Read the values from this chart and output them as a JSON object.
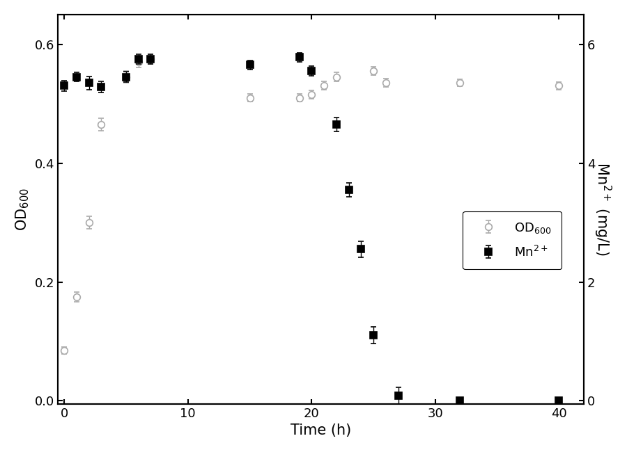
{
  "od600_x": [
    0,
    1,
    2,
    3,
    5,
    6,
    7,
    15,
    19,
    20,
    21,
    22,
    25,
    26,
    32,
    40
  ],
  "od600_y": [
    0.085,
    0.175,
    0.3,
    0.465,
    0.545,
    0.57,
    0.575,
    0.51,
    0.51,
    0.515,
    0.53,
    0.545,
    0.555,
    0.535,
    0.535,
    0.53
  ],
  "od600_yerr": [
    0.006,
    0.008,
    0.01,
    0.01,
    0.01,
    0.009,
    0.008,
    0.007,
    0.007,
    0.007,
    0.007,
    0.008,
    0.007,
    0.007,
    0.006,
    0.006
  ],
  "mn_x": [
    0,
    1,
    2,
    3,
    5,
    6,
    7,
    15,
    19,
    20,
    22,
    23,
    24,
    25,
    27,
    32,
    40
  ],
  "mn_y": [
    5.3,
    5.45,
    5.35,
    5.28,
    5.45,
    5.75,
    5.75,
    5.65,
    5.78,
    5.55,
    4.65,
    3.55,
    2.55,
    1.1,
    0.09,
    0.01,
    0.01
  ],
  "mn_yerr": [
    0.09,
    0.08,
    0.11,
    0.09,
    0.09,
    0.08,
    0.08,
    0.08,
    0.08,
    0.08,
    0.12,
    0.12,
    0.13,
    0.14,
    0.14,
    0.005,
    0.005
  ],
  "od600_color": "#aaaaaa",
  "mn_color": "#000000",
  "xlabel": "Time (h)",
  "ylabel_left": "OD$_{600}$",
  "ylabel_right": "Mn$^{2+}$ (mg/L)",
  "legend_od": "OD$_{600}$",
  "legend_mn": "Mn$^{2+}$",
  "xlim": [
    -0.5,
    42
  ],
  "ylim_left": [
    -0.005,
    0.65
  ],
  "ylim_right": [
    -0.05,
    6.5
  ],
  "xticks": [
    0,
    10,
    20,
    30,
    40
  ],
  "yticks_left": [
    0.0,
    0.2,
    0.4,
    0.6
  ],
  "yticks_right": [
    0,
    2,
    4,
    6
  ],
  "background_color": "#ffffff",
  "figsize": [
    9.0,
    6.5
  ],
  "dpi": 100
}
